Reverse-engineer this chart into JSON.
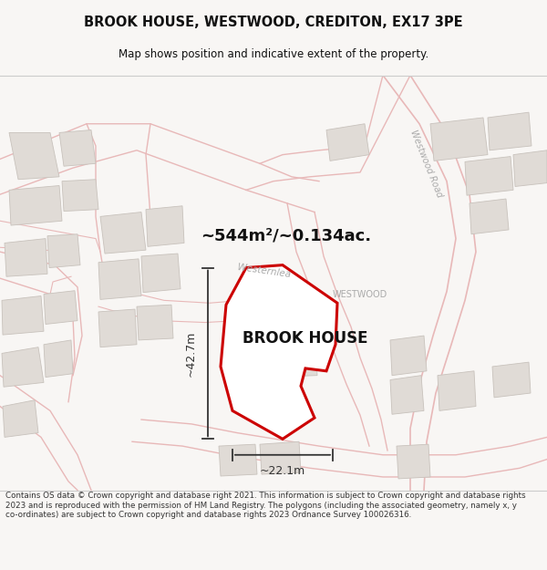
{
  "title": "BROOK HOUSE, WESTWOOD, CREDITON, EX17 3PE",
  "subtitle": "Map shows position and indicative extent of the property.",
  "property_label": "BROOK HOUSE",
  "area_label": "~544m²/~0.134ac.",
  "dim_width_label": "~22.1m",
  "dim_height_label": "~42.7m",
  "road_label_1": "Westernlea",
  "road_label_2": "Westwood Road",
  "place_label": "WESTWOOD",
  "footer_text": "Contains OS data © Crown copyright and database right 2021. This information is subject to Crown copyright and database rights 2023 and is reproduced with the permission of HM Land Registry. The polygons (including the associated geometry, namely x, y co-ordinates) are subject to Crown copyright and database rights 2023 Ordnance Survey 100026316.",
  "bg_color": "#f8f6f4",
  "map_bg": "#f8f8f8",
  "parcel_color": "#e8b8b8",
  "building_fill": "#e0dbd6",
  "building_edge": "#c8c2bc",
  "property_fill": "#ffffff",
  "property_edge": "#cc0000",
  "dim_color": "#333333",
  "title_color": "#111111",
  "footer_color": "#333333",
  "road_label_color": "#aaaaaa",
  "place_label_color": "#aaaaaa"
}
